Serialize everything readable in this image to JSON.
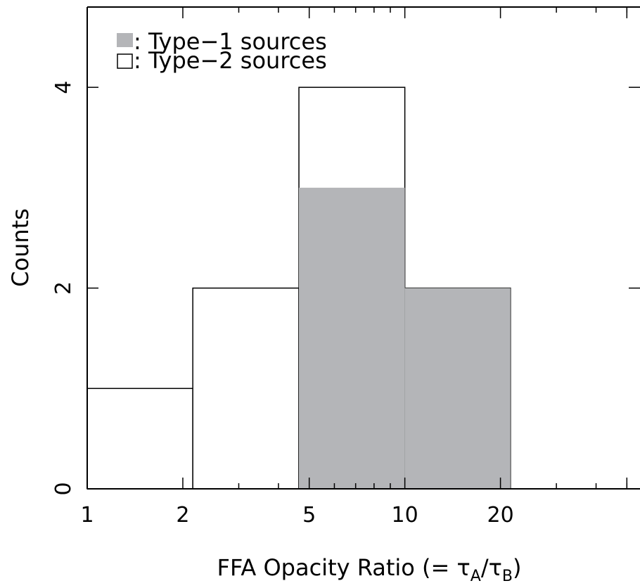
{
  "chart_data": {
    "type": "bar",
    "xscale": "log",
    "xlim": [
      1,
      55
    ],
    "ylim": [
      0,
      4.8
    ],
    "xlabel": "FFA Opacity Ratio (= τ",
    "xlabel_sub_a": "A",
    "xlabel_mid": "/τ",
    "xlabel_sub_b": "B",
    "xlabel_end": ")",
    "ylabel": "Counts",
    "x_ticks": [
      {
        "value": 1,
        "label": "1"
      },
      {
        "value": 2,
        "label": "2"
      },
      {
        "value": 5,
        "label": "5"
      },
      {
        "value": 10,
        "label": "10"
      },
      {
        "value": 20,
        "label": "20"
      }
    ],
    "y_ticks": [
      {
        "value": 0,
        "label": "0"
      },
      {
        "value": 2,
        "label": "2"
      },
      {
        "value": 4,
        "label": "4"
      }
    ],
    "bin_edges": [
      1,
      2.15,
      4.64,
      10,
      21.5,
      46.4
    ],
    "series": [
      {
        "name": "Type−2 sources",
        "fill": "#ffffff",
        "counts": [
          1,
          2,
          4,
          2,
          0
        ]
      },
      {
        "name": "Type−1 sources",
        "fill": "#b4b5b8",
        "counts": [
          0,
          0,
          3,
          2,
          0
        ]
      }
    ],
    "legend": {
      "placement": "top-left",
      "items": [
        {
          "symbol": "filled",
          "label": ": Type−1 sources"
        },
        {
          "symbol": "open",
          "label": ": Type−2 sources"
        }
      ]
    },
    "grid": false
  }
}
